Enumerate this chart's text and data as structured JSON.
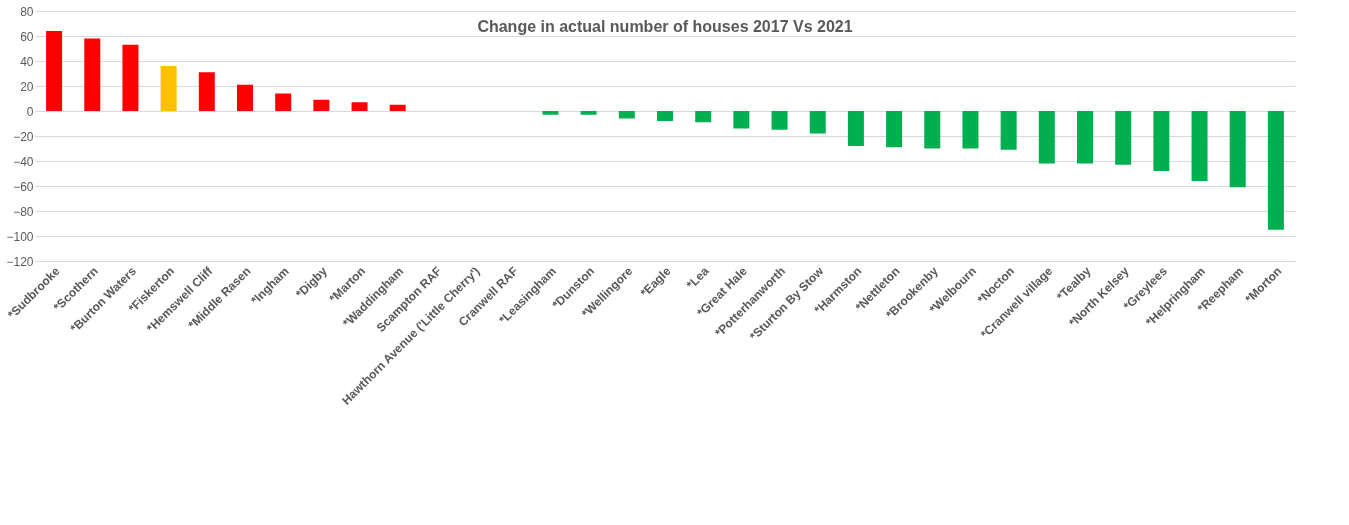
{
  "chart_data": {
    "type": "bar",
    "title": "Change in actual number of houses 2017 Vs 2021",
    "categories": [
      "*Sudbrooke",
      "*Scothern",
      "*Burton Waters",
      "*Fiskerton",
      "*Hemswell Cliff",
      "*Middle Rasen",
      "*Ingham",
      "*Digby",
      "*Marton",
      "*Waddingham",
      "Scampton RAF",
      "Hawthorn Avenue ('Little Cherry')",
      "Cranwell RAF",
      "*Leasingham",
      "*Dunston",
      "*Wellingore",
      "*Eagle",
      "*Lea",
      "*Great Hale",
      "*Potterhanworth",
      "*Sturton By Stow",
      "*Harmston",
      "*Nettleton",
      "*Brookenby",
      "*Welbourn",
      "*Nocton",
      "*Cranwell village",
      "*Tealby",
      "*North Kelsey",
      "*Greylees",
      "*Helpringham",
      "*Reepham",
      "*Morton"
    ],
    "values": [
      64,
      58,
      53,
      36,
      31,
      21,
      14,
      9,
      7,
      5,
      0,
      0,
      0,
      -3,
      -3,
      -6,
      -8,
      -9,
      -14,
      -15,
      -18,
      -28,
      -29,
      -30,
      -30,
      -31,
      -42,
      -42,
      -43,
      -48,
      -56,
      -61,
      -95
    ],
    "colors": [
      "#ff0000",
      "#ff0000",
      "#ff0000",
      "#ffc000",
      "#ff0000",
      "#ff0000",
      "#ff0000",
      "#ff0000",
      "#ff0000",
      "#ff0000",
      "#ff0000",
      "#ff0000",
      "#ff0000",
      "#00b050",
      "#00b050",
      "#00b050",
      "#00b050",
      "#00b050",
      "#00b050",
      "#00b050",
      "#00b050",
      "#00b050",
      "#00b050",
      "#00b050",
      "#00b050",
      "#00b050",
      "#00b050",
      "#00b050",
      "#00b050",
      "#00b050",
      "#00b050",
      "#00b050",
      "#00b050"
    ],
    "ylim": [
      -120,
      80
    ],
    "yticks": [
      -120,
      -100,
      -80,
      -60,
      -40,
      -20,
      0,
      20,
      40,
      60,
      80
    ],
    "grid": "y"
  }
}
